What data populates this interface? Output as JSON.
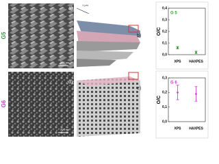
{
  "rows": [
    {
      "label": "G5",
      "panels": [
        "a)",
        "b)"
      ],
      "scale_bars": [
        "200 nm",
        "1 µm"
      ]
    },
    {
      "label": "G6",
      "panels": [
        "d)",
        "e)"
      ],
      "scale_bars": [
        "200 nm"
      ]
    }
  ],
  "chart_data": [
    {
      "type": "errorbar",
      "title": "G 5",
      "y_label": "O/C",
      "categories": [
        "XPS",
        "HAXPES"
      ],
      "series": [
        {
          "color": "#2e9a2e",
          "values": [
            0.06,
            0.02
          ],
          "errors": [
            0.01,
            0.01
          ]
        }
      ],
      "ylim": [
        0,
        0.4
      ],
      "yticks": [
        {
          "value": 0,
          "label": "0,0"
        },
        {
          "value": 0.1,
          "label": "0,1"
        },
        {
          "value": 0.2,
          "label": "0,2"
        },
        {
          "value": 0.3,
          "label": "0,3"
        },
        {
          "value": 0.4,
          "label": "0,4"
        }
      ]
    },
    {
      "type": "errorbar",
      "title": "G 6",
      "y_label": "O/C",
      "categories": [
        "XPS",
        "HAXPES"
      ],
      "series": [
        {
          "color": "#cc33cc",
          "values": [
            0.2,
            0.19
          ],
          "errors": [
            0.05,
            0.05
          ]
        }
      ],
      "ylim": [
        0,
        0.3
      ],
      "yticks": [
        {
          "value": 0,
          "label": "0,0"
        },
        {
          "value": 0.1,
          "label": "0,1"
        },
        {
          "value": 0.2,
          "label": "0,2"
        },
        {
          "value": 0.3,
          "label": "0,3"
        }
      ]
    }
  ]
}
